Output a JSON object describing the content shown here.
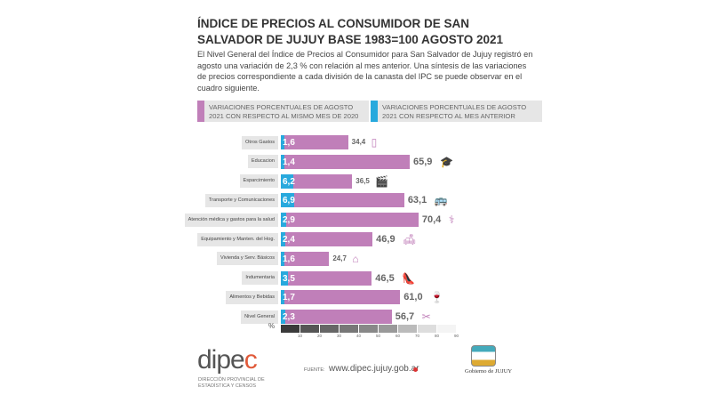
{
  "title": "ÍNDICE DE PRECIOS AL CONSUMIDOR DE SAN SALVADOR DE JUJUY BASE 1983=100 AGOSTO 2021",
  "intro": "El Nivel General del Índice de Precios al Consumidor para San Salvador de Jujuy registró en agosto una variación de 2,3 % con relación al mes anterior. Una síntesis de las variaciones de precios correspondiente a cada división de la canasta del IPC se puede observar en el cuadro siguiente.",
  "colors": {
    "annual": "#c07fb9",
    "monthly": "#28a9dd"
  },
  "chart_data": {
    "type": "bar",
    "orientation": "horizontal",
    "categories": [
      "Otros Gastos",
      "Educacion",
      "Esparcimiento",
      "Transporte y Comunicaciones",
      "Atención médica y gastos para la salud",
      "Equipamiento y Manten. del Hog.",
      "Vivienda y Serv. Básicos",
      "Indumentaria",
      "Alimentos y Bebidas",
      "Nivel General"
    ],
    "series": [
      {
        "name": "VARIACIONES PORCENTUALES DE AGOSTO 2021 CON RESPECTO AL MISMO MES DE 2020",
        "labels": [
          "34,4",
          "65,9",
          "36,5",
          "63,1",
          "70,4",
          "46,9",
          "24,7",
          "46,5",
          "61,0",
          "56,7"
        ],
        "values": [
          34.4,
          65.9,
          36.5,
          63.1,
          70.4,
          46.9,
          24.7,
          46.5,
          61.0,
          56.7
        ]
      },
      {
        "name": "VARIACIONES PORCENTUALES DE AGOSTO 2021 CON RESPECTO AL MES ANTERIOR",
        "labels": [
          "1,6",
          "1,4",
          "6,2",
          "6,9",
          "2,9",
          "2,4",
          "1,6",
          "3,5",
          "1,7",
          "2,3"
        ],
        "values": [
          1.6,
          1.4,
          6.2,
          6.9,
          2.9,
          2.4,
          1.6,
          3.5,
          1.7,
          2.3
        ]
      }
    ],
    "icons": [
      "phone-icon",
      "graduation-cap-icon",
      "clapperboard-icon",
      "bus-plane-icon",
      "doctor-icon",
      "sofa-icon",
      "house-icon",
      "shoe-icon",
      "food-drink-icon",
      "scissors-icon"
    ],
    "xlabel": "%",
    "xticks": [
      "10",
      "20",
      "30",
      "40",
      "50",
      "60",
      "70",
      "80",
      "90"
    ],
    "xlim": [
      0,
      90
    ]
  },
  "footer": {
    "logo": "dipec",
    "org": "DIRECCIÓN PROVINCIAL DE ESTADÍSTICA Y CENSOS",
    "source_label": "FUENTE:",
    "url": "www.dipec.jujuy.gob.ar",
    "gov": "Gobierno de JUJUY"
  }
}
